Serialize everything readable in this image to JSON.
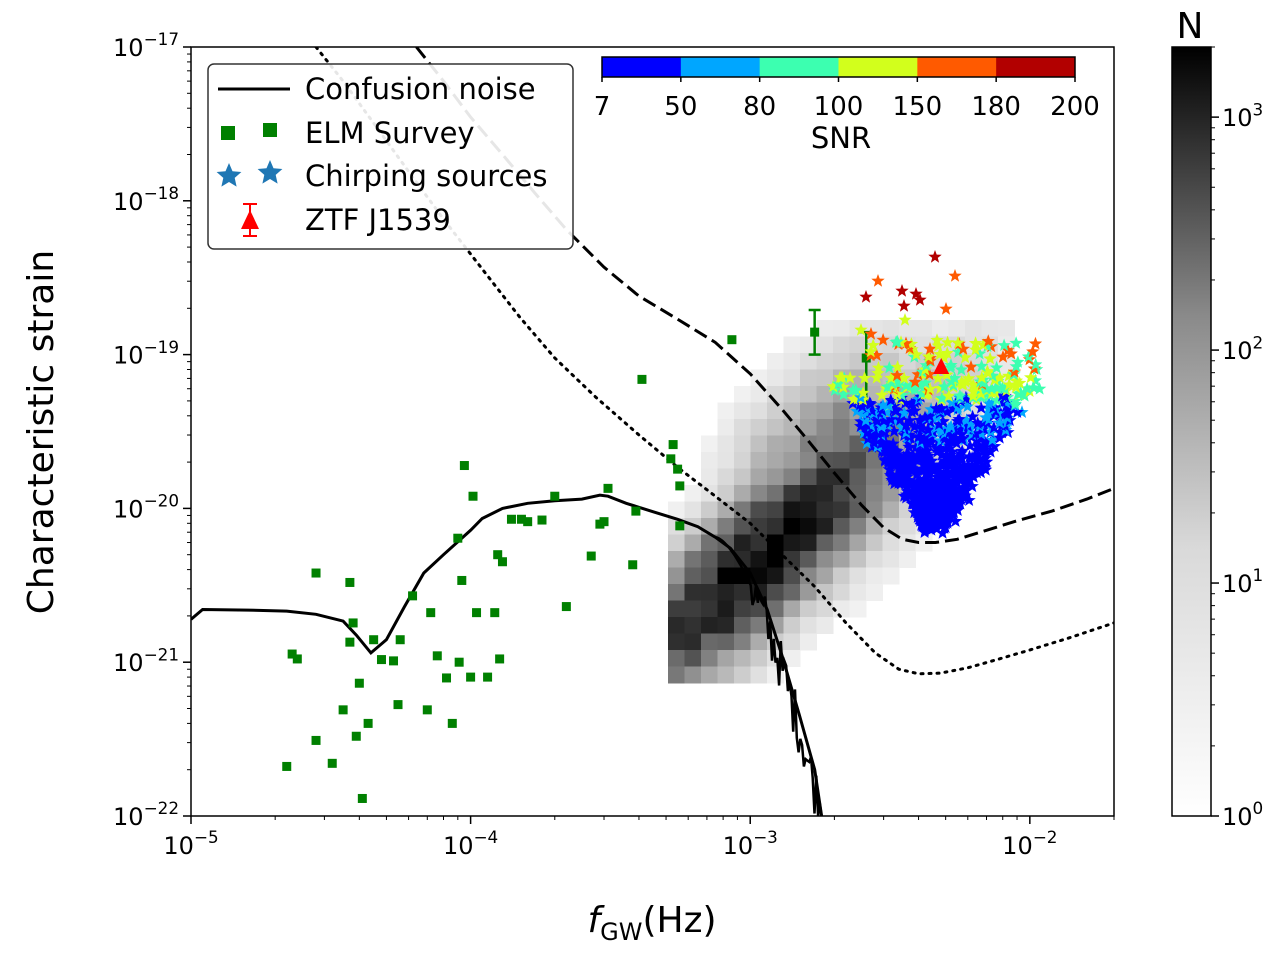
{
  "chart_data": {
    "type": "scatter",
    "xlabel_main": "f",
    "xlabel_sub": "GW",
    "xlabel_unit": "(Hz)",
    "ylabel": "Characteristic strain",
    "xscale": "log",
    "yscale": "log",
    "xlim": [
      1e-05,
      0.02
    ],
    "ylim": [
      1e-22,
      1e-17
    ],
    "x_ticks": [
      {
        "value": 1e-05,
        "label": "10",
        "exp": "−5"
      },
      {
        "value": 0.0001,
        "label": "10",
        "exp": "−4"
      },
      {
        "value": 0.001,
        "label": "10",
        "exp": "−3"
      },
      {
        "value": 0.01,
        "label": "10",
        "exp": "−2"
      }
    ],
    "y_ticks": [
      {
        "value": 1e-22,
        "label": "10",
        "exp": "−22"
      },
      {
        "value": 1e-21,
        "label": "10",
        "exp": "−21"
      },
      {
        "value": 1e-20,
        "label": "10",
        "exp": "−20"
      },
      {
        "value": 1e-19,
        "label": "10",
        "exp": "−19"
      },
      {
        "value": 1e-18,
        "label": "10",
        "exp": "−18"
      },
      {
        "value": 1e-17,
        "label": "10",
        "exp": "−17"
      }
    ],
    "legend": {
      "placement": "top-left",
      "entries": [
        {
          "name": "Confusion noise",
          "marker": "line",
          "color": "#000000"
        },
        {
          "name": "ELM Survey",
          "marker": "square",
          "color": "#008000"
        },
        {
          "name": "Chirping sources",
          "marker": "star",
          "color": "#1f77b4"
        },
        {
          "name": "ZTF J1539",
          "marker": "triangle-errorbar",
          "color": "#ff0000"
        }
      ]
    },
    "snr_colorbar": {
      "label": "SNR",
      "ticks": [
        "7",
        "50",
        "80",
        "100",
        "150",
        "180",
        "200"
      ],
      "colors": [
        "#0000ff",
        "#00a6ff",
        "#3cffb0",
        "#d2ff1c",
        "#ff5a00",
        "#b20000"
      ]
    },
    "density_colorbar": {
      "title": "N",
      "scale": "log",
      "range": [
        1,
        2000
      ],
      "ticks": [
        {
          "value": 1,
          "label": "10",
          "exp": "0"
        },
        {
          "value": 10,
          "label": "10",
          "exp": "1"
        },
        {
          "value": 100,
          "label": "10",
          "exp": "2"
        },
        {
          "value": 1000,
          "label": "10",
          "exp": "3"
        }
      ]
    },
    "series": [
      {
        "name": "Confusion noise",
        "type": "line",
        "style": "solid",
        "color": "#000000",
        "x": [
          1e-05,
          1.1e-05,
          1.6e-05,
          2.2e-05,
          2.8e-05,
          3.5e-05,
          3.9e-05,
          4.4e-05,
          5e-05,
          5.8e-05,
          6.8e-05,
          8e-05,
          0.0001,
          0.00011,
          0.00013,
          0.00016,
          0.0002,
          0.00025,
          0.00029,
          0.00031,
          0.00036,
          0.00045,
          0.00055,
          0.00065,
          0.00075,
          0.00085,
          0.001,
          0.00115,
          0.0013,
          0.0015,
          0.0017,
          0.0018
        ],
        "y": [
          1.9e-21,
          2.2e-21,
          2.18e-21,
          2.15e-21,
          2.05e-21,
          1.85e-21,
          1.5e-21,
          1.15e-21,
          1.4e-21,
          2.3e-21,
          3.8e-21,
          5e-21,
          7.2e-21,
          8.6e-21,
          1e-20,
          1.08e-20,
          1.12e-20,
          1.15e-20,
          1.22e-20,
          1.2e-20,
          1.08e-20,
          9.5e-21,
          8.5e-21,
          7.6e-21,
          6.5e-21,
          5.5e-21,
          3.8e-21,
          2.2e-21,
          1.1e-21,
          4.5e-22,
          2e-22,
          1e-22
        ]
      },
      {
        "name": "",
        "type": "line",
        "style": "dashed",
        "color": "#000000",
        "x": [
          6.4e-05,
          8e-05,
          0.0001,
          0.00013,
          0.00017,
          0.00022,
          0.0003,
          0.0004,
          0.00055,
          0.00075,
          0.001,
          0.0013,
          0.0016,
          0.002,
          0.0025,
          0.003,
          0.0035,
          0.004,
          0.0046,
          0.0055,
          0.007,
          0.009,
          0.012,
          0.016,
          0.02
        ],
        "y": [
          1e-17,
          6e-18,
          3.5e-18,
          2e-18,
          1.12e-18,
          6.5e-19,
          3.7e-19,
          2.4e-19,
          1.7e-19,
          1.2e-19,
          7.5e-20,
          4.4e-20,
          2.8e-20,
          1.7e-20,
          1.05e-20,
          7.5e-21,
          6.3e-21,
          6e-21,
          6e-21,
          6.3e-21,
          7.2e-21,
          8.3e-21,
          9.6e-21,
          1.15e-20,
          1.35e-20
        ]
      },
      {
        "name": "",
        "type": "line",
        "style": "dotted",
        "color": "#000000",
        "x": [
          2.8e-05,
          3.5e-05,
          4.5e-05,
          6e-05,
          8e-05,
          0.00011,
          0.00015,
          0.0002,
          0.00028,
          0.0004,
          0.00055,
          0.00075,
          0.001,
          0.0013,
          0.0017,
          0.0022,
          0.0028,
          0.0034,
          0.004,
          0.0048,
          0.006,
          0.0075,
          0.01,
          0.014,
          0.02
        ],
        "y": [
          1e-17,
          6e-18,
          3.2e-18,
          1.55e-18,
          7.6e-19,
          3.6e-19,
          1.75e-19,
          9.5e-20,
          5.3e-20,
          3e-20,
          1.85e-20,
          1.2e-20,
          8e-21,
          5e-21,
          3.1e-21,
          1.8e-21,
          1.15e-21,
          9e-22,
          8.4e-22,
          8.5e-22,
          9.2e-22,
          1.03e-21,
          1.2e-21,
          1.45e-21,
          1.8e-21
        ]
      },
      {
        "name": "ELM Survey",
        "type": "scatter",
        "marker": "square",
        "color": "#008000",
        "x": [
          2.2e-05,
          2.3e-05,
          2.4e-05,
          2.8e-05,
          2.8e-05,
          3.2e-05,
          3.5e-05,
          3.7e-05,
          3.7e-05,
          3.8e-05,
          3.9e-05,
          4e-05,
          4.1e-05,
          4.3e-05,
          4.5e-05,
          4.8e-05,
          5.3e-05,
          5.5e-05,
          5.6e-05,
          6.2e-05,
          7e-05,
          7.2e-05,
          7.6e-05,
          8.2e-05,
          8.6e-05,
          9e-05,
          9.1e-05,
          9.3e-05,
          9.5e-05,
          0.0001,
          0.000102,
          0.000105,
          0.000115,
          0.000122,
          0.000125,
          0.000127,
          0.00013,
          0.00014,
          0.000152,
          0.00016,
          0.00018,
          0.0002,
          0.00022,
          0.00027,
          0.00029,
          0.0003,
          0.00031,
          0.00038,
          0.00039,
          0.00041,
          0.00052,
          0.00053,
          0.00055,
          0.00056,
          0.00056,
          0.00086
        ],
        "y": [
          2.1e-22,
          1.13e-21,
          1.05e-21,
          3.1e-22,
          3.8e-21,
          2.2e-22,
          4.9e-22,
          3.3e-21,
          1.35e-21,
          1.8e-21,
          3.3e-22,
          7.3e-22,
          1.3e-22,
          4e-22,
          1.4e-21,
          1.04e-21,
          1.02e-21,
          5.3e-22,
          1.4e-21,
          2.7e-21,
          4.9e-22,
          2.1e-21,
          1.1e-21,
          7.9e-22,
          4e-22,
          6.4e-21,
          1e-21,
          3.4e-21,
          1.9e-20,
          8e-22,
          1.2e-20,
          2.1e-21,
          8e-22,
          2.1e-21,
          5e-21,
          1.05e-21,
          4.5e-21,
          8.5e-21,
          8.5e-21,
          8.2e-21,
          8.4e-21,
          1.2e-20,
          2.3e-21,
          4.9e-21,
          7.9e-21,
          8.2e-21,
          1.35e-20,
          4.3e-21,
          9.6e-21,
          6.9e-20,
          2.1e-20,
          2.6e-20,
          1.8e-20,
          1.4e-20,
          7.7e-21,
          1.25e-19
        ],
        "errorbars": [
          {
            "x": 0.0017,
            "y": 1.4e-19,
            "ylo": 1e-19,
            "yhi": 1.95e-19
          },
          {
            "x": 0.0026,
            "y": 9.5e-20,
            "ylo": 3e-20,
            "yhi": 1.4e-19
          }
        ]
      },
      {
        "name": "ZTF J1539",
        "type": "scatter",
        "marker": "triangle",
        "color": "#ff0000",
        "x": [
          0.00482
        ],
        "y": [
          8.3e-20
        ]
      }
    ]
  }
}
